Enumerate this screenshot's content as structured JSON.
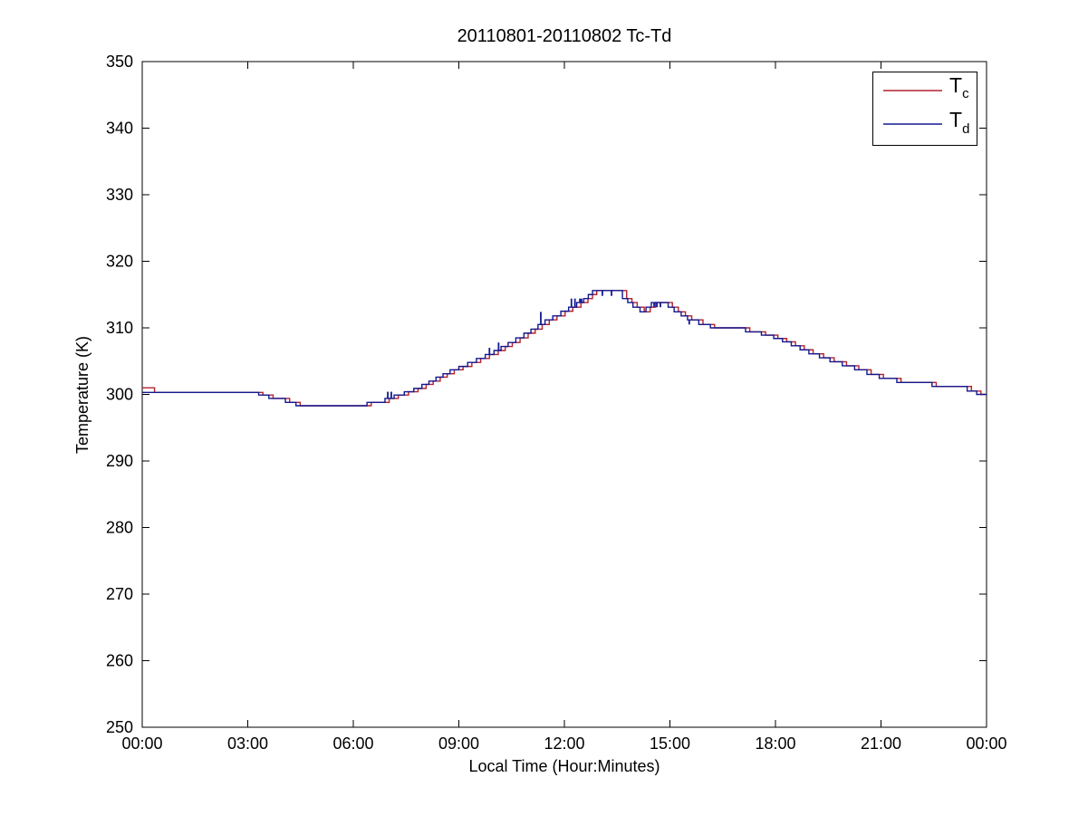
{
  "figure": {
    "title": "20110801-20110802 Tc-Td",
    "xlabel": "Local Time (Hour:Minutes)",
    "ylabel": "Temperature (K)",
    "background_color": "#ffffff",
    "axis_color": "#000000"
  },
  "chart_data": {
    "type": "line",
    "title": "20110801-20110802 Tc-Td",
    "xlabel": "Local Time (Hour:Minutes)",
    "ylabel": "Temperature (K)",
    "xlim": [
      0,
      24
    ],
    "ylim": [
      250,
      350
    ],
    "x_ticks": [
      0,
      3,
      6,
      9,
      12,
      15,
      18,
      21,
      24
    ],
    "x_tick_labels": [
      "00:00",
      "03:00",
      "06:00",
      "09:00",
      "12:00",
      "15:00",
      "18:00",
      "21:00",
      "00:00"
    ],
    "y_ticks": [
      250,
      260,
      270,
      280,
      290,
      300,
      310,
      320,
      330,
      340,
      350
    ],
    "y_tick_labels": [
      "250",
      "260",
      "270",
      "280",
      "290",
      "300",
      "310",
      "320",
      "330",
      "340",
      "350"
    ],
    "grid": false,
    "legend_position": "upper right",
    "legend": {
      "entries": [
        {
          "name": "Tc",
          "symbol": "T",
          "sub": "c",
          "color": "#b2222e"
        },
        {
          "name": "Td",
          "symbol": "T",
          "sub": "d",
          "color": "#14188f"
        }
      ]
    },
    "series": [
      {
        "name": "Tc",
        "color": "#b2222e",
        "mode": "step-after",
        "points": [
          [
            0.0,
            301.0
          ],
          [
            0.35,
            300.3
          ],
          [
            3.43,
            299.9
          ],
          [
            3.72,
            299.4
          ],
          [
            4.19,
            298.8
          ],
          [
            4.49,
            298.3
          ],
          [
            6.51,
            298.8
          ],
          [
            7.02,
            299.4
          ],
          [
            7.28,
            299.9
          ],
          [
            7.57,
            300.4
          ],
          [
            7.84,
            300.9
          ],
          [
            8.07,
            301.5
          ],
          [
            8.27,
            302.0
          ],
          [
            8.47,
            302.6
          ],
          [
            8.67,
            303.1
          ],
          [
            8.87,
            303.7
          ],
          [
            9.12,
            304.2
          ],
          [
            9.37,
            304.8
          ],
          [
            9.62,
            305.4
          ],
          [
            9.87,
            306.0
          ],
          [
            10.12,
            306.6
          ],
          [
            10.32,
            307.2
          ],
          [
            10.52,
            307.8
          ],
          [
            10.74,
            308.5
          ],
          [
            10.97,
            309.2
          ],
          [
            11.17,
            309.8
          ],
          [
            11.37,
            310.5
          ],
          [
            11.57,
            311.2
          ],
          [
            11.79,
            311.8
          ],
          [
            12.02,
            312.5
          ],
          [
            12.24,
            313.1
          ],
          [
            12.47,
            313.8
          ],
          [
            12.67,
            314.4
          ],
          [
            12.8,
            315.0
          ],
          [
            12.92,
            315.6
          ],
          [
            13.77,
            314.4
          ],
          [
            13.92,
            313.8
          ],
          [
            14.07,
            313.1
          ],
          [
            14.27,
            312.4
          ],
          [
            14.44,
            313.1
          ],
          [
            14.59,
            313.8
          ],
          [
            15.07,
            313.1
          ],
          [
            15.24,
            312.4
          ],
          [
            15.44,
            311.8
          ],
          [
            15.62,
            311.2
          ],
          [
            15.94,
            310.5
          ],
          [
            16.27,
            310.0
          ],
          [
            17.27,
            309.4
          ],
          [
            17.72,
            308.9
          ],
          [
            18.07,
            308.4
          ],
          [
            18.32,
            307.9
          ],
          [
            18.57,
            307.3
          ],
          [
            18.82,
            306.7
          ],
          [
            19.07,
            306.1
          ],
          [
            19.37,
            305.5
          ],
          [
            19.67,
            304.9
          ],
          [
            20.02,
            304.3
          ],
          [
            20.37,
            303.7
          ],
          [
            20.72,
            303.0
          ],
          [
            21.07,
            302.4
          ],
          [
            21.57,
            301.8
          ],
          [
            22.57,
            301.2
          ],
          [
            23.57,
            300.5
          ],
          [
            23.84,
            300.0
          ]
        ],
        "spikes": []
      },
      {
        "name": "Td",
        "color": "#14188f",
        "mode": "step-after",
        "points": [
          [
            0.0,
            300.3
          ],
          [
            3.31,
            299.9
          ],
          [
            3.6,
            299.4
          ],
          [
            4.07,
            298.8
          ],
          [
            4.37,
            298.3
          ],
          [
            6.39,
            298.8
          ],
          [
            6.9,
            299.4
          ],
          [
            7.16,
            299.9
          ],
          [
            7.45,
            300.4
          ],
          [
            7.72,
            300.9
          ],
          [
            7.95,
            301.5
          ],
          [
            8.15,
            302.0
          ],
          [
            8.35,
            302.6
          ],
          [
            8.55,
            303.1
          ],
          [
            8.75,
            303.7
          ],
          [
            9.0,
            304.2
          ],
          [
            9.25,
            304.8
          ],
          [
            9.5,
            305.4
          ],
          [
            9.75,
            306.0
          ],
          [
            10.0,
            306.6
          ],
          [
            10.2,
            307.2
          ],
          [
            10.4,
            307.8
          ],
          [
            10.62,
            308.5
          ],
          [
            10.85,
            309.2
          ],
          [
            11.05,
            309.8
          ],
          [
            11.25,
            310.5
          ],
          [
            11.45,
            311.2
          ],
          [
            11.67,
            311.8
          ],
          [
            11.9,
            312.5
          ],
          [
            12.12,
            313.1
          ],
          [
            12.35,
            313.8
          ],
          [
            12.55,
            314.4
          ],
          [
            12.68,
            315.0
          ],
          [
            12.8,
            315.6
          ],
          [
            13.65,
            314.4
          ],
          [
            13.8,
            313.8
          ],
          [
            13.95,
            313.1
          ],
          [
            14.15,
            312.4
          ],
          [
            14.32,
            313.1
          ],
          [
            14.47,
            313.8
          ],
          [
            14.95,
            313.1
          ],
          [
            15.12,
            312.4
          ],
          [
            15.32,
            311.8
          ],
          [
            15.5,
            311.2
          ],
          [
            15.82,
            310.5
          ],
          [
            16.15,
            310.0
          ],
          [
            17.15,
            309.4
          ],
          [
            17.6,
            308.9
          ],
          [
            17.95,
            308.4
          ],
          [
            18.2,
            307.9
          ],
          [
            18.45,
            307.3
          ],
          [
            18.7,
            306.7
          ],
          [
            18.95,
            306.1
          ],
          [
            19.25,
            305.5
          ],
          [
            19.55,
            304.9
          ],
          [
            19.9,
            304.3
          ],
          [
            20.25,
            303.7
          ],
          [
            20.6,
            303.0
          ],
          [
            20.95,
            302.4
          ],
          [
            21.45,
            301.8
          ],
          [
            22.45,
            301.2
          ],
          [
            23.45,
            300.5
          ],
          [
            23.72,
            300.0
          ]
        ],
        "spikes": [
          [
            6.98,
            300.4
          ],
          [
            7.08,
            300.4
          ],
          [
            9.87,
            307.0
          ],
          [
            10.13,
            307.8
          ],
          [
            11.33,
            312.4
          ],
          [
            12.2,
            314.4
          ],
          [
            12.3,
            314.4
          ],
          [
            12.44,
            314.4
          ],
          [
            12.49,
            314.4
          ],
          [
            13.08,
            314.8
          ],
          [
            13.34,
            314.8
          ],
          [
            14.55,
            313.1
          ],
          [
            14.63,
            313.1
          ],
          [
            14.73,
            313.1
          ],
          [
            15.55,
            310.5
          ]
        ]
      }
    ]
  }
}
